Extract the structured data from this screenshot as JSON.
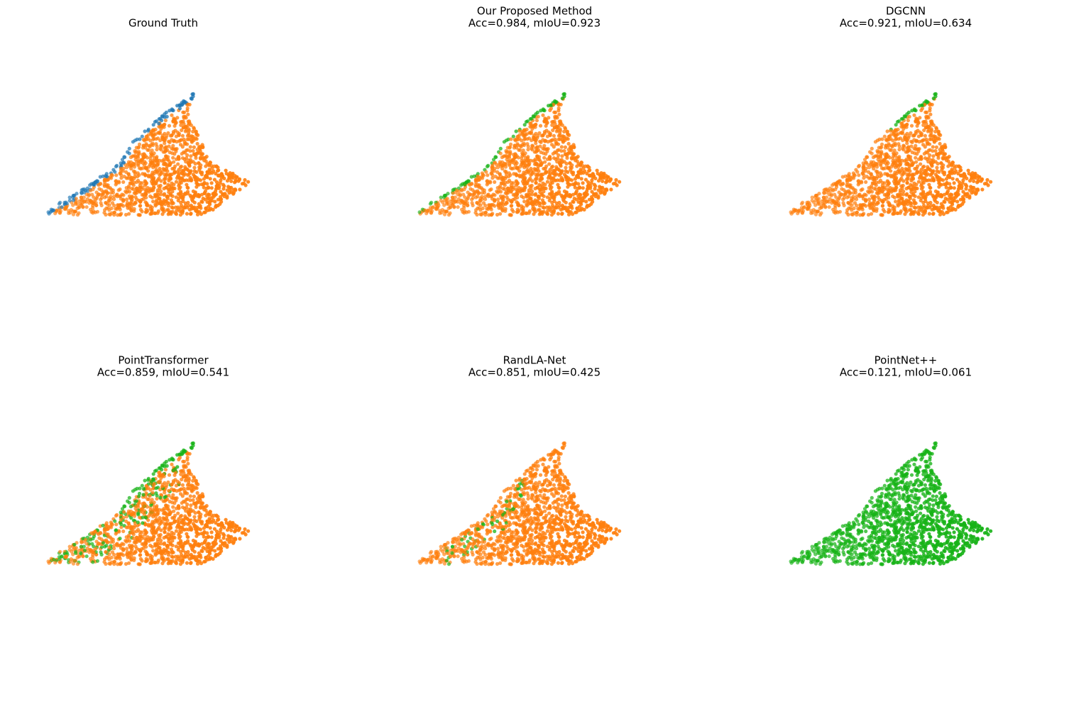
{
  "chart_data": [
    {
      "type": "scatter",
      "title": "Ground Truth"
    },
    {
      "type": "scatter",
      "title": "Our Proposed Method",
      "subtitle": "Acc=0.984, mIoU=0.923"
    },
    {
      "type": "scatter",
      "title": "DGCNN",
      "subtitle": "Acc=0.921, mIoU=0.634"
    },
    {
      "type": "scatter",
      "title": "PointTransformer",
      "subtitle": "Acc=0.859, mIoU=0.541"
    },
    {
      "type": "scatter",
      "title": "RandLA-Net",
      "subtitle": "Acc=0.851, mIoU=0.425"
    },
    {
      "type": "scatter",
      "title": "PointNet++",
      "subtitle": "Acc=0.121, mIoU=0.061"
    }
  ]
}
